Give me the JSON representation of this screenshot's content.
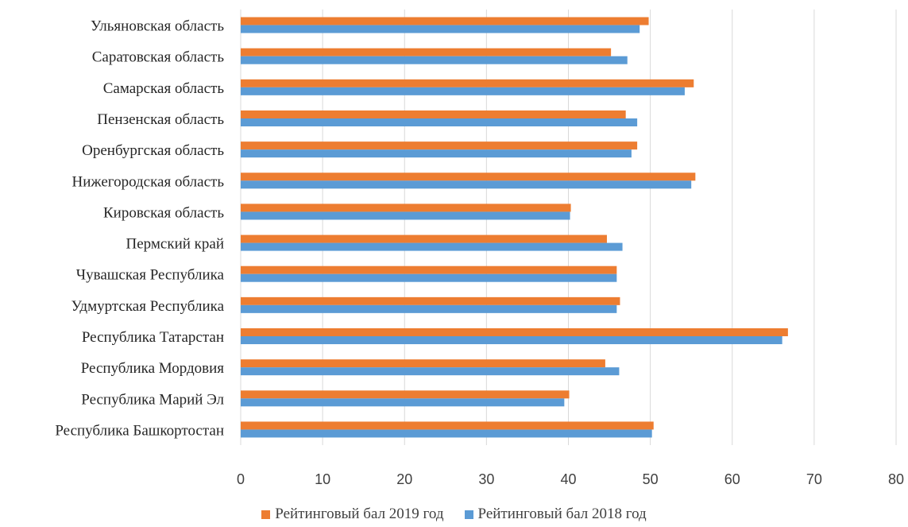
{
  "chart_data": {
    "type": "bar",
    "orientation": "horizontal",
    "categories": [
      "Ульяновская область",
      "Саратовская область",
      "Самарская область",
      "Пензенская область",
      "Оренбургская область",
      "Нижегородская область",
      "Кировская область",
      "Пермский край",
      "Чувашская Республика",
      "Удмуртская Республика",
      "Республика Татарстан",
      "Республика Мордовия",
      "Республика Марий Эл",
      "Республика Башкортостан"
    ],
    "series": [
      {
        "name": "Рейтинговый бал 2019 год",
        "color": "#ED7D31",
        "values": [
          49.8,
          45.2,
          55.3,
          47.0,
          48.4,
          55.5,
          40.3,
          44.7,
          45.9,
          46.3,
          66.8,
          44.5,
          40.1,
          50.4
        ]
      },
      {
        "name": "Рейтинговый бал 2018 год",
        "color": "#5B9BD5",
        "values": [
          48.7,
          47.2,
          54.2,
          48.4,
          47.7,
          55.0,
          40.2,
          46.6,
          45.9,
          45.9,
          66.1,
          46.2,
          39.5,
          50.2
        ]
      }
    ],
    "x_ticks": [
      "0",
      "10",
      "20",
      "30",
      "40",
      "50",
      "60",
      "70",
      "80"
    ],
    "xlim": [
      0,
      80
    ],
    "grid": true,
    "legend_position": "bottom"
  }
}
